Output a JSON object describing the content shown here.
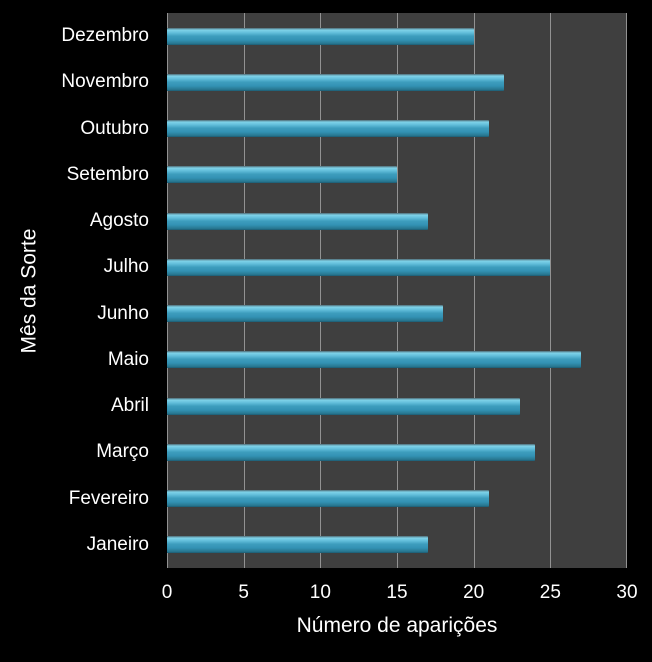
{
  "chart_data": {
    "type": "bar",
    "orientation": "horizontal",
    "categories": [
      "Dezembro",
      "Novembro",
      "Outubro",
      "Setembro",
      "Agosto",
      "Julho",
      "Junho",
      "Maio",
      "Abril",
      "Março",
      "Fevereiro",
      "Janeiro"
    ],
    "values": [
      20,
      22,
      21,
      15,
      17,
      25,
      18,
      27,
      23,
      24,
      21,
      17
    ],
    "title": "",
    "xlabel": "Número de aparições",
    "ylabel": "Mês da Sorte",
    "xlim": [
      0,
      30
    ],
    "xticks": [
      0,
      5,
      10,
      15,
      20,
      25,
      30
    ],
    "grid": "vertical-only",
    "legend": "none",
    "colors": {
      "page_background": "#000000",
      "plot_background": "#3f3f3f",
      "gridline": "#929292",
      "text": "#ffffff",
      "bar_main": "#3d9dbd",
      "bar_highlight": "#7fd2e8",
      "bar_shadow": "#1c5a70"
    }
  }
}
